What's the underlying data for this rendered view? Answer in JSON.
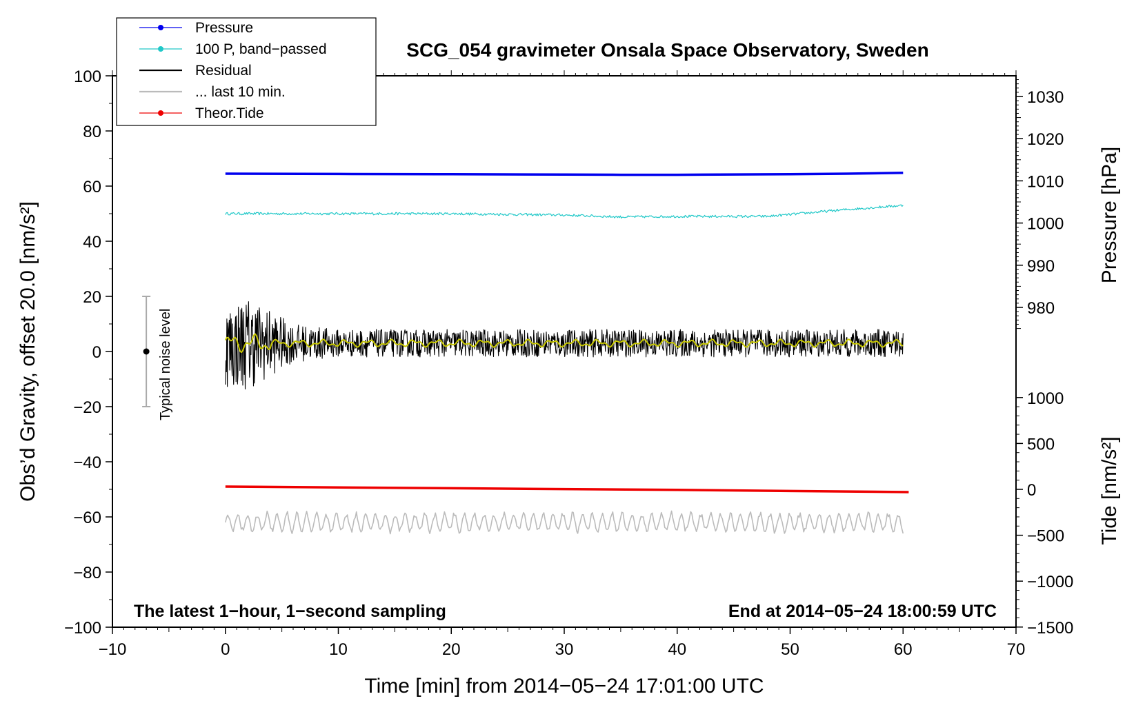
{
  "chart_data": {
    "type": "line",
    "title": "SCG_054 gravimeter Onsala Space Observatory, Sweden",
    "xlabel": "Time [min] from 2014−05−24 17:01:00 UTC",
    "ylabel_left": "Obs’d Gravity, offset 20.0 [nm/s²]",
    "ylabel_right_top": "Pressure [hPa]",
    "ylabel_right_bottom": "Tide [nm/s²]",
    "annotation_left": "The latest 1−hour, 1−second sampling",
    "annotation_right": "End at 2014−05−24 18:00:59 UTC",
    "noise_label": "Typical noise level",
    "noise_bar": {
      "x": -7,
      "y": 0,
      "low": -20,
      "high": 20
    },
    "xlim": [
      -10,
      70
    ],
    "ylim": [
      -100,
      100
    ],
    "x_ticks": [
      -10,
      0,
      10,
      20,
      30,
      40,
      50,
      60,
      70
    ],
    "x_tick_labels": [
      "−10",
      "0",
      "10",
      "20",
      "30",
      "40",
      "50",
      "60",
      "70"
    ],
    "y_ticks": [
      100,
      80,
      60,
      40,
      20,
      0,
      -20,
      -40,
      -60,
      -80,
      -100
    ],
    "y_tick_labels": [
      "100",
      "80",
      "60",
      "40",
      "20",
      "0",
      "−20",
      "−40",
      "−60",
      "−80",
      "−100"
    ],
    "pressure_axis": {
      "ticks": [
        1030,
        1020,
        1010,
        1000,
        990,
        980
      ],
      "tick_labels": [
        "1030",
        "1020",
        "1010",
        "1000",
        "990",
        "980"
      ],
      "gravity_at_1030": 92.5,
      "gravity_per_hPa": 1.53
    },
    "tide_axis": {
      "ticks": [
        1000,
        500,
        0,
        -500,
        -1000,
        -1500
      ],
      "tick_labels": [
        "1000",
        "500",
        "0",
        "−500",
        "−1000",
        "−1500"
      ],
      "gravity_at_0": -50,
      "gravity_per_unit": 0.0333
    },
    "legend": {
      "placement": "top-left",
      "entries": [
        {
          "label": "Pressure",
          "color": "#0000ee",
          "marker": true
        },
        {
          "label": "100 P, band−passed",
          "color": "#20c8c8",
          "marker": true
        },
        {
          "label": "Residual",
          "color": "#000000",
          "marker": false
        },
        {
          "label": "... last 10 min.",
          "color": "#bbbbbb",
          "marker": false
        },
        {
          "label": "Theor.Tide",
          "color": "#ee0000",
          "marker": true
        }
      ]
    },
    "series": [
      {
        "name": "Pressure",
        "color": "#0000ee",
        "x": [
          0,
          10,
          20,
          30,
          35,
          40,
          50,
          55,
          60
        ],
        "y": [
          64.5,
          64.4,
          64.3,
          64.2,
          64.1,
          64.1,
          64.3,
          64.5,
          64.8
        ]
      },
      {
        "name": "100 P, band−passed",
        "color": "#20c8c8",
        "x": [
          0,
          10,
          20,
          30,
          35,
          40,
          48,
          55,
          60
        ],
        "y": [
          50,
          50,
          50,
          49.5,
          48.8,
          49,
          49,
          51.5,
          53
        ]
      },
      {
        "name": "Residual",
        "color": "#000000",
        "x": [
          0,
          2,
          4,
          6,
          10,
          20,
          30,
          40,
          50,
          60
        ],
        "y": [
          2,
          3,
          3,
          3,
          3,
          3,
          3,
          3,
          3,
          3
        ],
        "noise_amplitude": [
          15,
          17,
          12,
          7,
          5,
          5,
          5,
          5,
          5,
          5
        ]
      },
      {
        "name": "Residual (smoothed)",
        "color": "#c8c800",
        "x": [
          0,
          5,
          10,
          20,
          30,
          40,
          50,
          60
        ],
        "y": [
          3,
          3,
          3,
          3,
          3,
          3,
          3,
          3
        ]
      },
      {
        "name": "... last 10 min.",
        "color": "#bbbbbb",
        "x": [
          0,
          60
        ],
        "y": [
          -62,
          -62
        ],
        "oscillation_amplitude": 3
      },
      {
        "name": "Theor.Tide",
        "color": "#ee0000",
        "x": [
          0,
          20,
          40,
          60.5
        ],
        "y": [
          -49,
          -49.6,
          -50.2,
          -51
        ]
      }
    ]
  }
}
